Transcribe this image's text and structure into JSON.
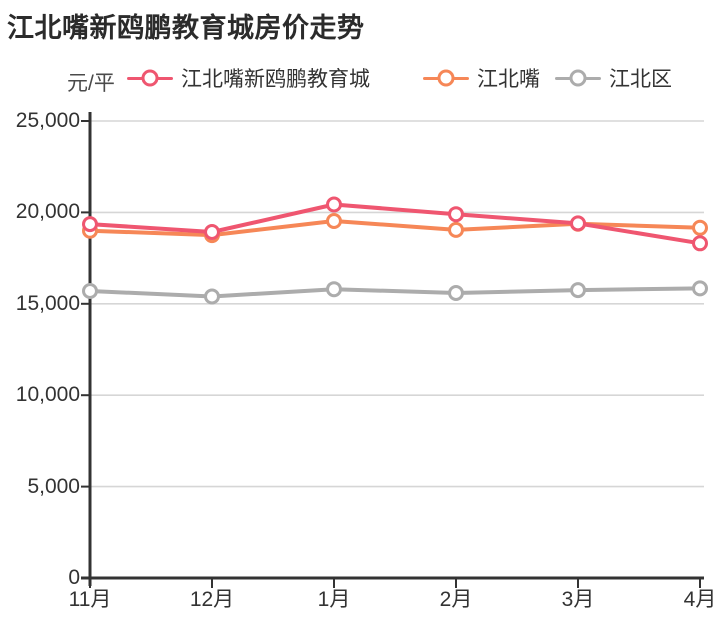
{
  "title": "江北嘴新鸥鹏教育城房价走势",
  "legend": {
    "unit_label": "元/平",
    "items": [
      {
        "label": "江北嘴新鸥鹏教育城",
        "color": "#EF5670"
      },
      {
        "label": "江北嘴",
        "color": "#F68757"
      },
      {
        "label": "江北区",
        "color": "#ACACAC"
      }
    ]
  },
  "chart_data": {
    "type": "line",
    "title": "江北嘴新鸥鹏教育城房价走势",
    "xlabel": "",
    "ylabel": "元/平",
    "categories": [
      "11月",
      "12月",
      "1月",
      "2月",
      "3月",
      "4月"
    ],
    "series": [
      {
        "name": "江北嘴新鸥鹏教育城",
        "color": "#EF5670",
        "values": [
          19360,
          18930,
          20430,
          19900,
          19400,
          18310
        ]
      },
      {
        "name": "江北嘴",
        "color": "#F68757",
        "values": [
          19000,
          18760,
          19530,
          19040,
          19380,
          19160
        ]
      },
      {
        "name": "江北区",
        "color": "#ACACAC",
        "values": [
          15700,
          15400,
          15800,
          15590,
          15750,
          15840
        ]
      }
    ],
    "ylim": [
      0,
      25000
    ],
    "yticks": [
      "0",
      "5,000",
      "10,000",
      "15,000",
      "20,000",
      "25,000"
    ],
    "grid": true,
    "legend_position": "top",
    "marker": "hollow-circle"
  },
  "colors": {
    "axis": "#333333",
    "grid": "#D6D6D6",
    "title_text": "#2B2B2B",
    "tick_text": "#333333",
    "marker_fill": "#FFFFFF"
  }
}
